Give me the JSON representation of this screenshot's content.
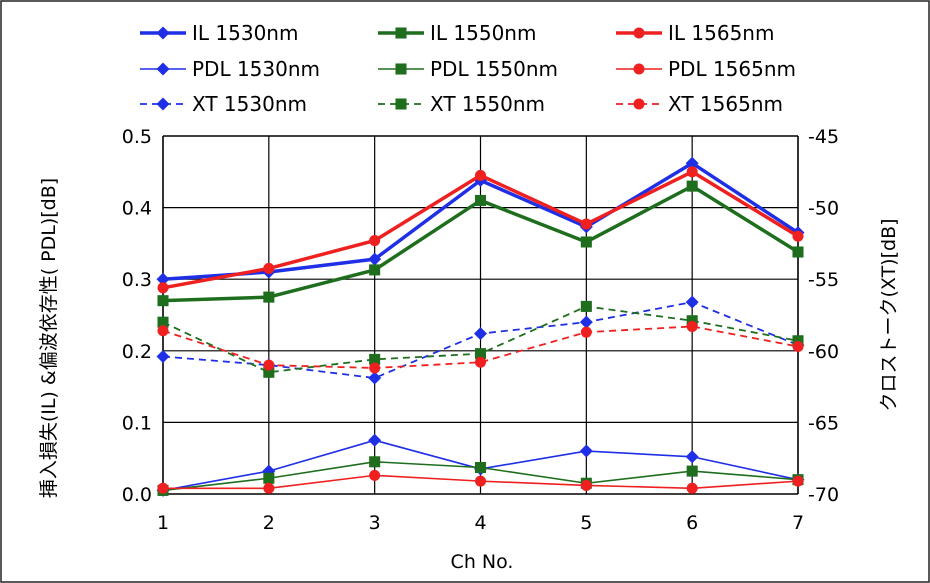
{
  "chart_data": {
    "type": "line",
    "categories": [
      "1",
      "2",
      "3",
      "4",
      "5",
      "6",
      "7"
    ],
    "xlabel": "Ch No.",
    "ylabel_left": "挿入損失(IL) &偏波依存性( PDL)[dB]",
    "ylabel_right": "クロストーク(XT)[dB]",
    "yleft_ticks": [
      "0.0",
      "0.1",
      "0.2",
      "0.3",
      "0.4",
      "0.5"
    ],
    "yright_ticks": [
      "-70",
      "-65",
      "-60",
      "-55",
      "-50",
      "-45"
    ],
    "ylim_left": [
      0,
      0.5
    ],
    "ylim_right": [
      -70,
      -45
    ],
    "grid": true,
    "legend_position": "top",
    "colors": {
      "c1530": "#1f2fe6",
      "c1550": "#1e6e1e",
      "c1565": "#ee2020"
    },
    "series": [
      {
        "name": "IL 1530nm",
        "axis": "left",
        "style": "thick",
        "marker": "diamond",
        "color_key": "c1530",
        "values": [
          0.3,
          0.31,
          0.328,
          0.438,
          0.373,
          0.462,
          0.365
        ]
      },
      {
        "name": "IL 1550nm",
        "axis": "left",
        "style": "thick",
        "marker": "square",
        "color_key": "c1550",
        "values": [
          0.27,
          0.275,
          0.313,
          0.41,
          0.352,
          0.43,
          0.338
        ]
      },
      {
        "name": "IL 1565nm",
        "axis": "left",
        "style": "thick",
        "marker": "circle",
        "color_key": "c1565",
        "values": [
          0.288,
          0.315,
          0.354,
          0.445,
          0.377,
          0.45,
          0.36
        ]
      },
      {
        "name": "PDL 1530nm",
        "axis": "left",
        "style": "thin",
        "marker": "diamond",
        "color_key": "c1530",
        "values": [
          0.005,
          0.032,
          0.075,
          0.035,
          0.06,
          0.052,
          0.02
        ]
      },
      {
        "name": "PDL 1550nm",
        "axis": "left",
        "style": "thin",
        "marker": "square",
        "color_key": "c1550",
        "values": [
          0.005,
          0.022,
          0.045,
          0.037,
          0.015,
          0.032,
          0.02
        ]
      },
      {
        "name": "PDL 1565nm",
        "axis": "left",
        "style": "thin",
        "marker": "circle",
        "color_key": "c1565",
        "values": [
          0.008,
          0.008,
          0.026,
          0.018,
          0.012,
          0.008,
          0.018
        ]
      },
      {
        "name": "XT 1530nm",
        "axis": "right",
        "style": "dashed",
        "marker": "diamond",
        "color_key": "c1530",
        "values": [
          -60.4,
          -61.0,
          -61.9,
          -58.8,
          -58.0,
          -56.6,
          -59.6
        ]
      },
      {
        "name": "XT 1550nm",
        "axis": "right",
        "style": "dashed",
        "marker": "square",
        "color_key": "c1550",
        "values": [
          -58.0,
          -61.5,
          -60.6,
          -60.2,
          -56.9,
          -57.9,
          -59.3
        ]
      },
      {
        "name": "XT 1565nm",
        "axis": "right",
        "style": "dashed",
        "marker": "circle",
        "color_key": "c1565",
        "values": [
          -58.6,
          -61.0,
          -61.2,
          -60.8,
          -58.7,
          -58.3,
          -59.7
        ]
      }
    ]
  }
}
